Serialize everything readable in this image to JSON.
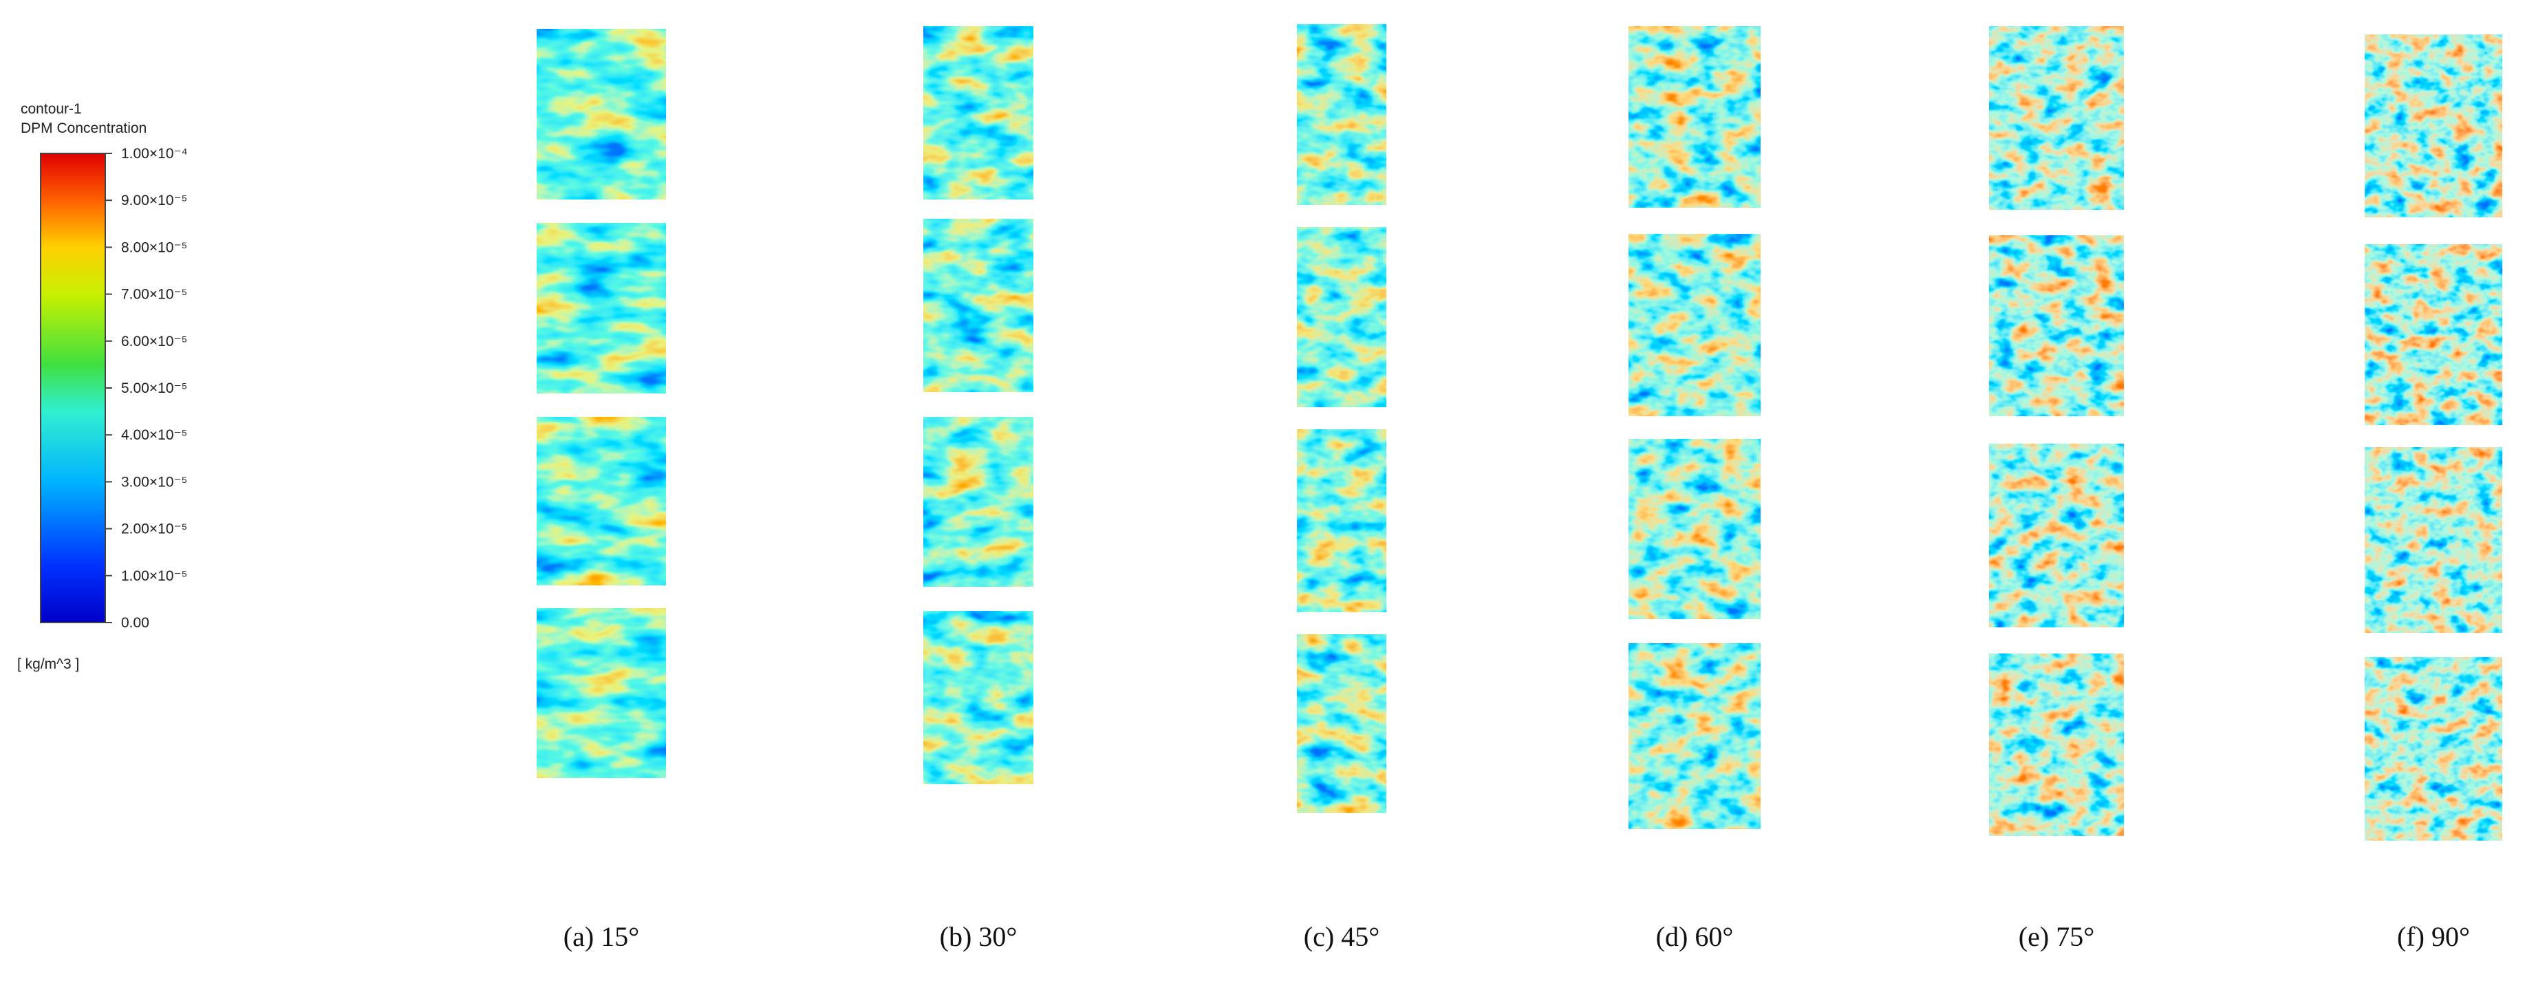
{
  "legend": {
    "title": [
      "contour-1",
      "DPM Concentration"
    ],
    "ticks": [
      "1.00×10⁻⁴",
      "9.00×10⁻⁵",
      "8.00×10⁻⁵",
      "7.00×10⁻⁵",
      "6.00×10⁻⁵",
      "5.00×10⁻⁵",
      "4.00×10⁻⁵",
      "3.00×10⁻⁵",
      "2.00×10⁻⁵",
      "1.00×10⁻⁵",
      "0.00"
    ],
    "unit": "[ kg/m^3 ]"
  },
  "panels": [
    {
      "caption": "(a) 15°"
    },
    {
      "caption": "(b) 30°"
    },
    {
      "caption": "(c) 45°"
    },
    {
      "caption": "(d) 60°"
    },
    {
      "caption": "(e) 75°"
    },
    {
      "caption": "(f) 90°"
    }
  ]
}
